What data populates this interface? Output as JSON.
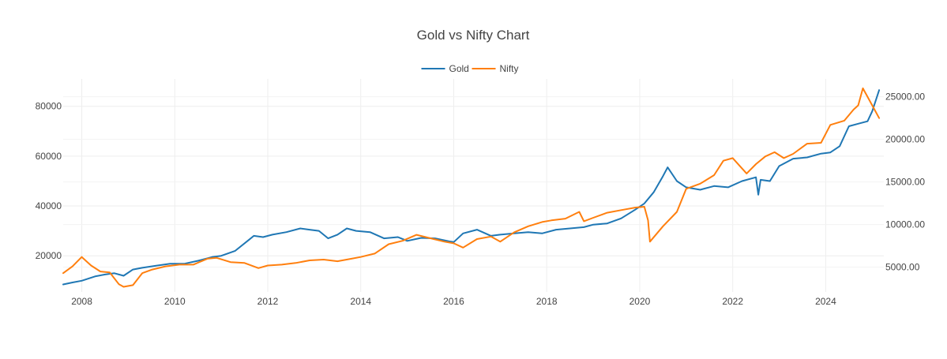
{
  "chart_data": {
    "type": "line",
    "title": "Gold vs Nifty Chart",
    "xlabel": "",
    "ylabel": "",
    "y2label": "",
    "grid": true,
    "legend_position": "top-center",
    "xlim": [
      2007.6,
      2025.25
    ],
    "ylim": [
      5500,
      91000
    ],
    "y2lim": [
      2100,
      27100
    ],
    "x_ticks": [
      "2008",
      "2010",
      "2012",
      "2014",
      "2016",
      "2018",
      "2020",
      "2022",
      "2024"
    ],
    "y_ticks": [
      "20000",
      "40000",
      "60000",
      "80000"
    ],
    "y2_ticks": [
      "5000.00",
      "10000.00",
      "15000.00",
      "20000.00",
      "25000.00"
    ],
    "series": [
      {
        "name": "Gold",
        "axis": "left",
        "color": "#1f77b4",
        "x": [
          2007.6,
          2007.8,
          2008.0,
          2008.3,
          2008.5,
          2008.7,
          2008.9,
          2009.1,
          2009.3,
          2009.6,
          2009.9,
          2010.2,
          2010.5,
          2010.8,
          2011.0,
          2011.3,
          2011.6,
          2011.7,
          2011.9,
          2012.1,
          2012.4,
          2012.7,
          2012.9,
          2013.1,
          2013.3,
          2013.5,
          2013.7,
          2013.9,
          2014.2,
          2014.5,
          2014.8,
          2015.0,
          2015.3,
          2015.6,
          2015.9,
          2016.0,
          2016.2,
          2016.5,
          2016.8,
          2017.0,
          2017.3,
          2017.6,
          2017.9,
          2018.2,
          2018.5,
          2018.8,
          2019.0,
          2019.3,
          2019.6,
          2019.9,
          2020.1,
          2020.3,
          2020.5,
          2020.6,
          2020.8,
          2021.0,
          2021.3,
          2021.6,
          2021.9,
          2022.2,
          2022.5,
          2022.55,
          2022.6,
          2022.8,
          2023.0,
          2023.3,
          2023.6,
          2023.9,
          2024.1,
          2024.3,
          2024.5,
          2024.7,
          2024.9,
          2025.0,
          2025.15
        ],
        "values": [
          8500,
          9300,
          10000,
          11800,
          12500,
          13000,
          12000,
          14500,
          15200,
          16000,
          16800,
          16800,
          18000,
          19500,
          20000,
          22000,
          26500,
          28000,
          27500,
          28500,
          29500,
          31000,
          30500,
          30000,
          27000,
          28500,
          31000,
          30000,
          29500,
          27000,
          27500,
          26000,
          27200,
          27000,
          25800,
          25500,
          29000,
          30500,
          28000,
          28500,
          29000,
          29500,
          29000,
          30500,
          31000,
          31500,
          32500,
          33000,
          35000,
          38500,
          41000,
          45500,
          52000,
          55500,
          50000,
          47500,
          46500,
          48000,
          47500,
          50000,
          51500,
          44500,
          50500,
          50000,
          56000,
          59000,
          59500,
          61000,
          61500,
          64000,
          72000,
          73000,
          74000,
          78000,
          86500
        ]
      },
      {
        "name": "Nifty",
        "axis": "right",
        "color": "#ff7f0e",
        "x": [
          2007.6,
          2007.8,
          2008.0,
          2008.2,
          2008.4,
          2008.6,
          2008.8,
          2008.9,
          2009.1,
          2009.3,
          2009.5,
          2009.8,
          2010.1,
          2010.4,
          2010.7,
          2010.9,
          2011.2,
          2011.5,
          2011.8,
          2012.0,
          2012.3,
          2012.6,
          2012.9,
          2013.2,
          2013.5,
          2013.8,
          2014.0,
          2014.3,
          2014.6,
          2014.9,
          2015.2,
          2015.5,
          2015.8,
          2016.0,
          2016.2,
          2016.5,
          2016.8,
          2017.0,
          2017.3,
          2017.6,
          2017.9,
          2018.1,
          2018.4,
          2018.7,
          2018.8,
          2019.0,
          2019.3,
          2019.6,
          2019.9,
          2020.1,
          2020.18,
          2020.22,
          2020.5,
          2020.8,
          2021.0,
          2021.3,
          2021.6,
          2021.8,
          2022.0,
          2022.3,
          2022.5,
          2022.7,
          2022.9,
          2023.1,
          2023.3,
          2023.6,
          2023.9,
          2024.1,
          2024.4,
          2024.6,
          2024.7,
          2024.8,
          2025.0,
          2025.15
        ],
        "values": [
          4300,
          5100,
          6200,
          5200,
          4500,
          4400,
          3000,
          2700,
          2900,
          4300,
          4700,
          5100,
          5300,
          5300,
          6000,
          6100,
          5600,
          5500,
          4900,
          5200,
          5300,
          5500,
          5800,
          5900,
          5700,
          6000,
          6200,
          6600,
          7700,
          8100,
          8800,
          8400,
          8000,
          7800,
          7300,
          8300,
          8600,
          8000,
          9100,
          9800,
          10300,
          10500,
          10700,
          11500,
          10400,
          10800,
          11400,
          11700,
          12000,
          12100,
          10500,
          8000,
          9800,
          11500,
          14200,
          14800,
          15800,
          17500,
          17800,
          16000,
          17100,
          18000,
          18500,
          17800,
          18300,
          19500,
          19600,
          21700,
          22200,
          23500,
          24000,
          26000,
          24000,
          22500
        ]
      }
    ]
  }
}
